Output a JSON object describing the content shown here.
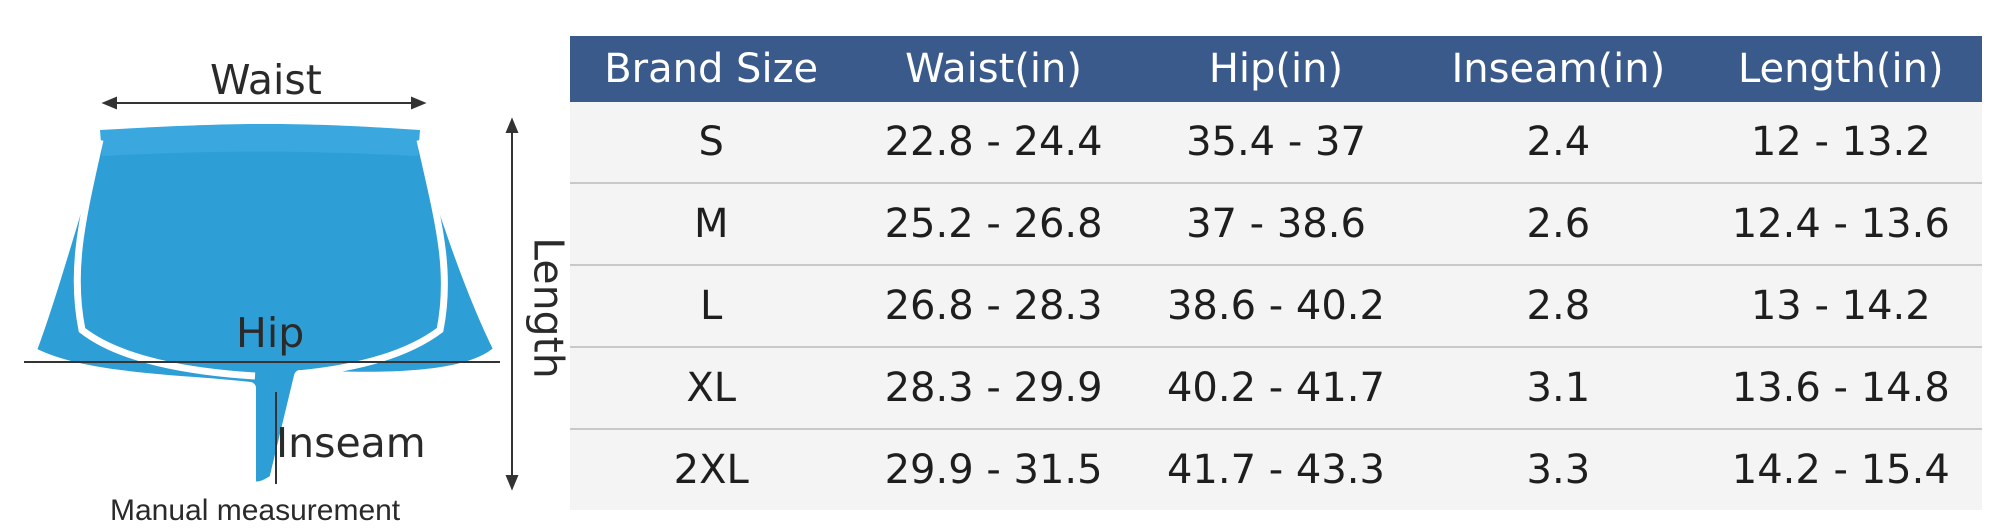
{
  "diagram": {
    "labels": {
      "waist": "Waist",
      "hip": "Hip",
      "inseam": "Inseam",
      "length": "Length"
    },
    "colors": {
      "fabric": "#2e9fd6",
      "trim": "#ffffff",
      "measure_line": "#333333"
    },
    "note": "Manual measurement"
  },
  "table": {
    "header_color": "#3a5a8c",
    "headers": [
      "Brand Size",
      "Waist(in)",
      "Hip(in)",
      "Inseam(in)",
      "Length(in)"
    ],
    "rows": [
      [
        "S",
        "22.8 - 24.4",
        "35.4 - 37",
        "2.4",
        "12 - 13.2"
      ],
      [
        "M",
        "25.2 - 26.8",
        "37 - 38.6",
        "2.6",
        "12.4 - 13.6"
      ],
      [
        "L",
        "26.8 - 28.3",
        "38.6 - 40.2",
        "2.8",
        "13 - 14.2"
      ],
      [
        "XL",
        "28.3 - 29.9",
        "40.2 - 41.7",
        "3.1",
        "13.6 - 14.8"
      ],
      [
        "2XL",
        "29.9 - 31.5",
        "41.7 - 43.3",
        "3.3",
        "14.2 - 15.4"
      ]
    ]
  }
}
